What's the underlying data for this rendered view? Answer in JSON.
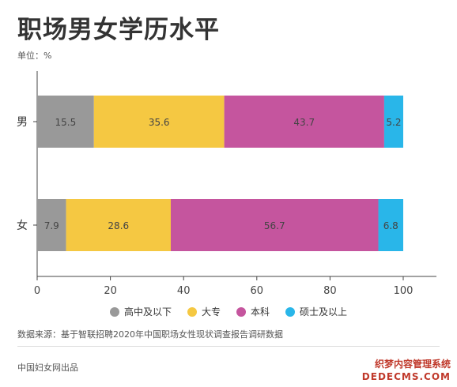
{
  "title": "职场男女学历水平",
  "unit_label": "单位：%",
  "source": "数据来源：基于智联招聘2020年中国职场女性现状调查报告调研数据",
  "publisher": "中国妇女网出品",
  "watermark": {
    "line1": "织梦内容管理系统",
    "line2": "DEDECMS.COM"
  },
  "chart_data": {
    "type": "bar",
    "orientation": "horizontal",
    "stacked": true,
    "categories": [
      "男",
      "女"
    ],
    "series": [
      {
        "name": "高中及以下",
        "color": "#999999",
        "values": [
          15.5,
          7.9
        ]
      },
      {
        "name": "大专",
        "color": "#F5C842",
        "values": [
          35.6,
          28.6
        ]
      },
      {
        "name": "本科",
        "color": "#C5559E",
        "values": [
          43.7,
          56.7
        ]
      },
      {
        "name": "硕士及以上",
        "color": "#29B6E9",
        "values": [
          5.2,
          6.8
        ]
      }
    ],
    "xlim": [
      0,
      100
    ],
    "xticks": [
      0,
      20,
      40,
      60,
      80,
      100
    ],
    "grid": false,
    "legend_position": "bottom"
  }
}
